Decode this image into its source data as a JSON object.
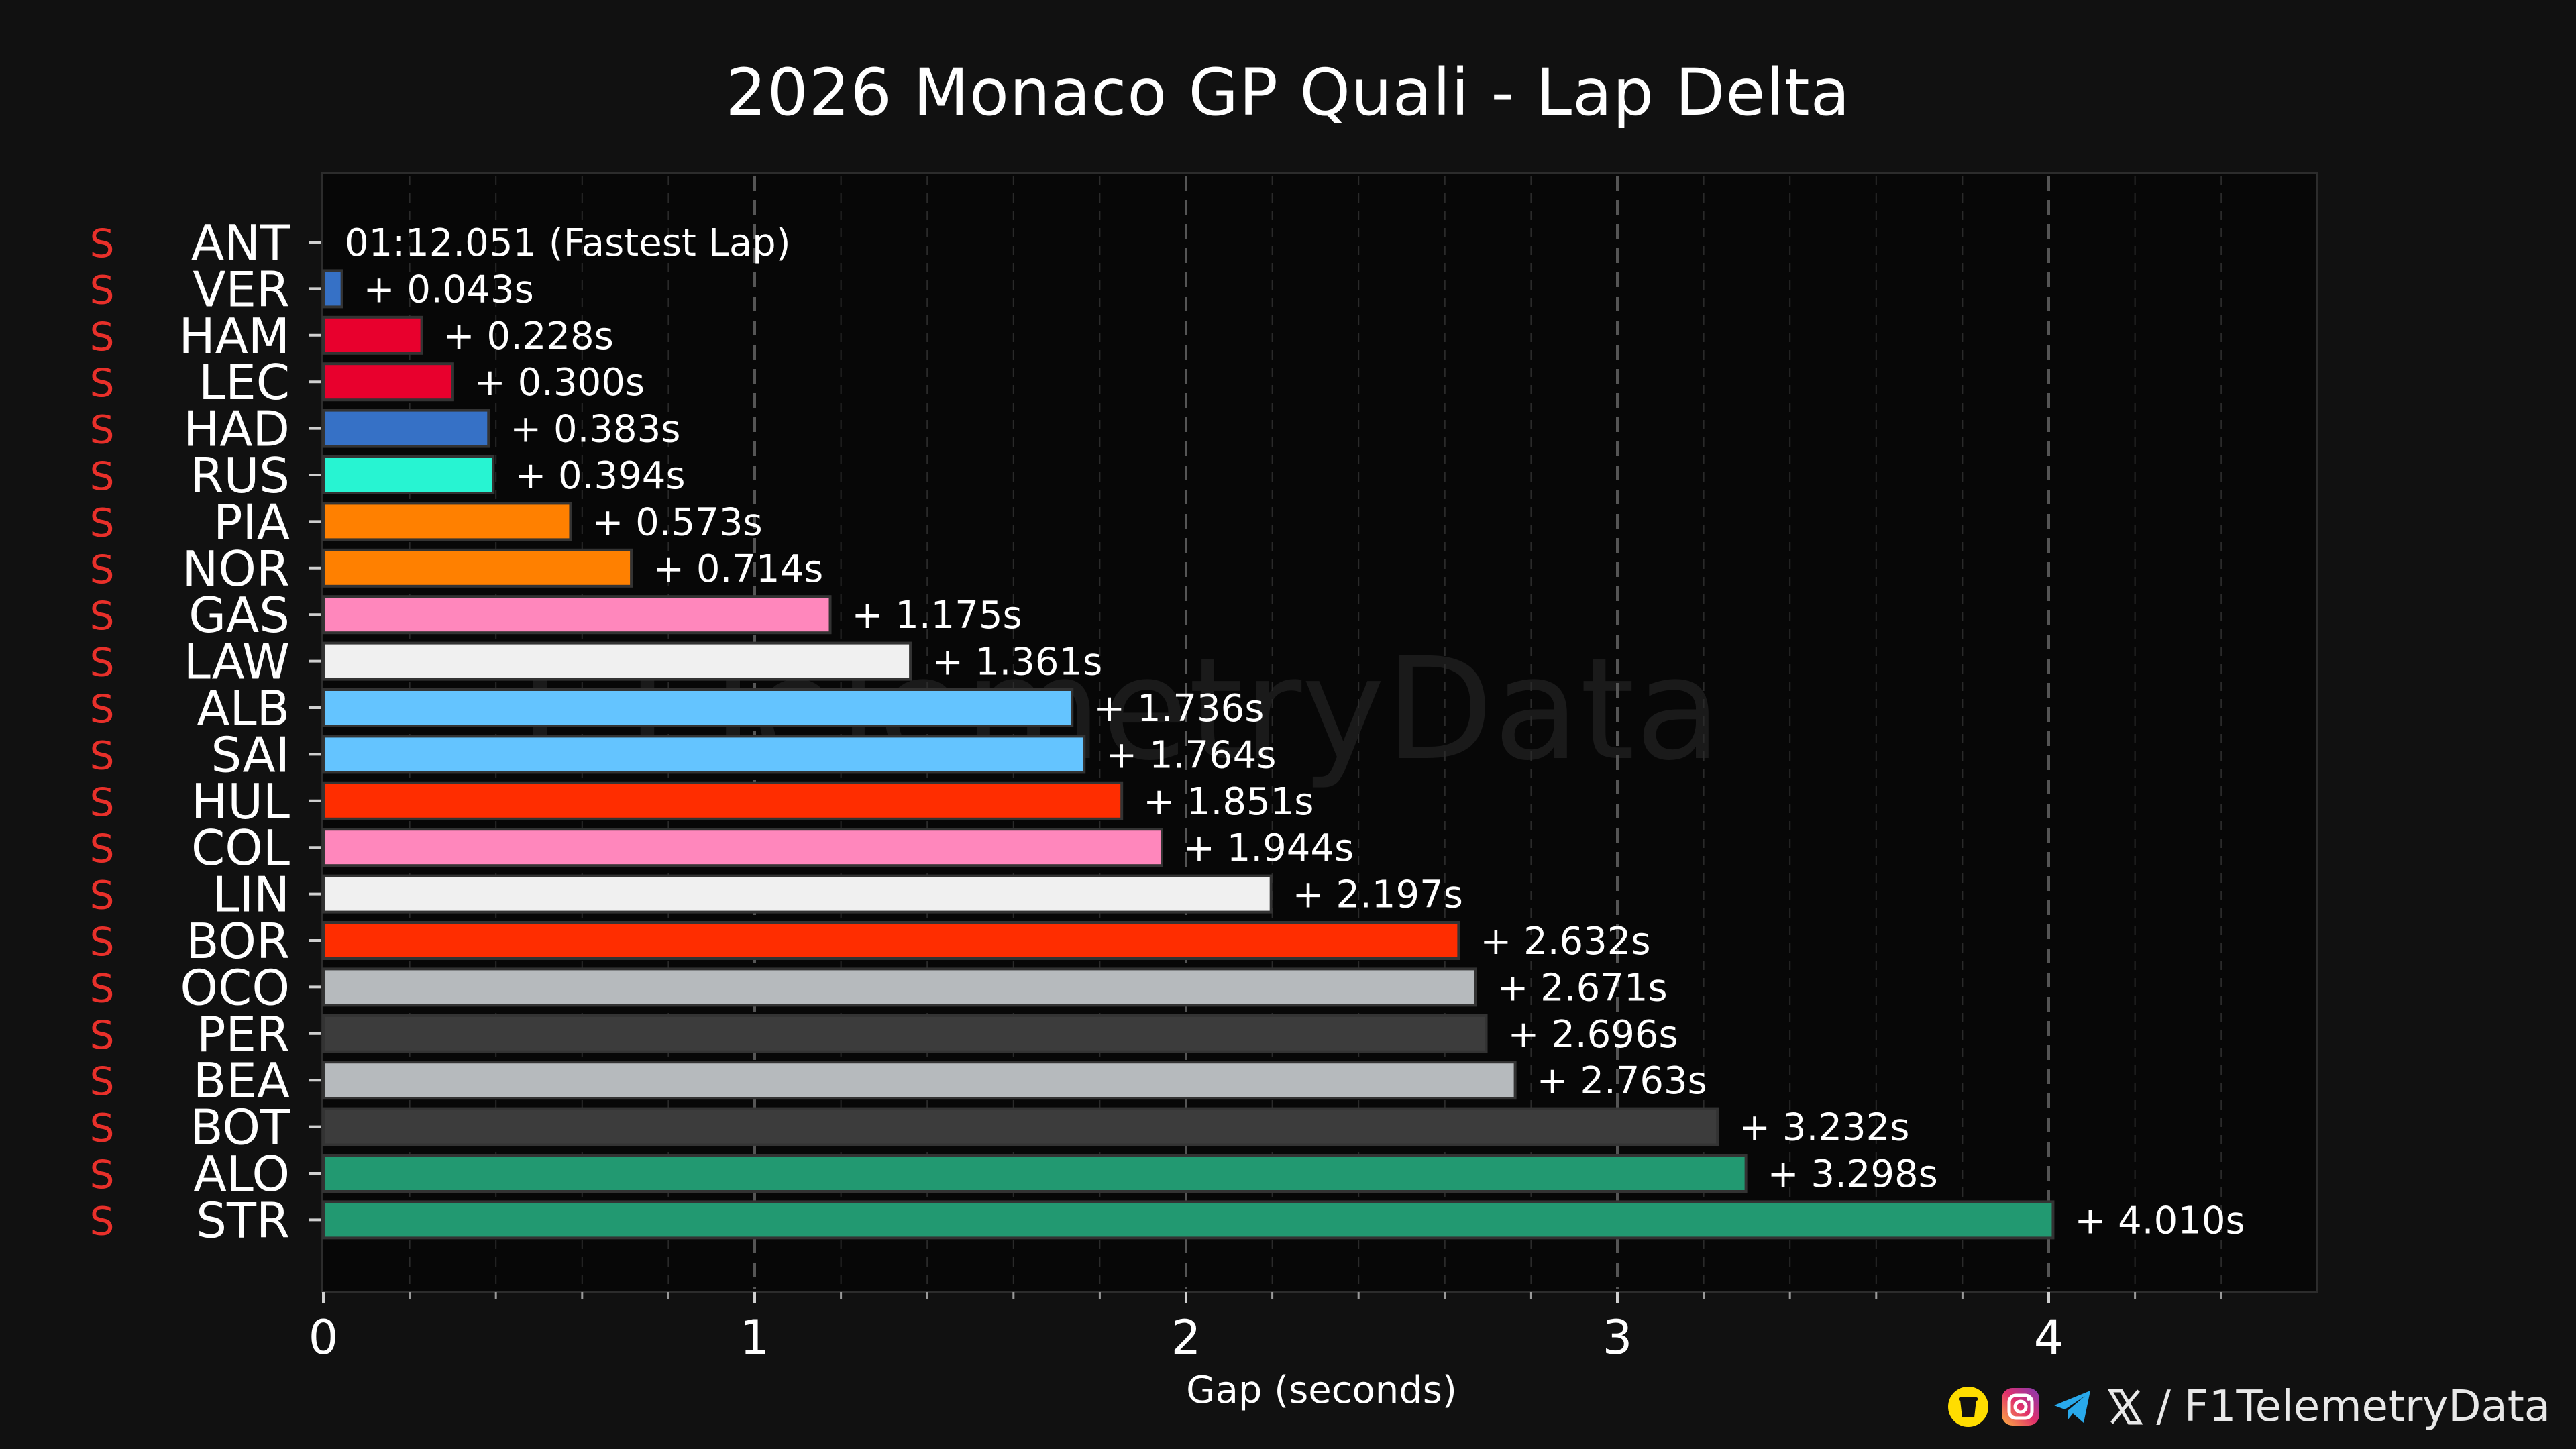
{
  "chart_data": {
    "type": "bar",
    "orientation": "horizontal",
    "title": "2026 Monaco GP Quali - Lap Delta",
    "xlabel": "Gap (seconds)",
    "xlim": [
      0,
      4.6
    ],
    "xticks": [
      "0",
      "1",
      "2",
      "3",
      "4"
    ],
    "grid": true,
    "tyre_marker": "S",
    "tyre_color": "#e8302a",
    "watermark": "F1TelemetryData",
    "fastest": {
      "driver": "ANT",
      "label": "01:12.051 (Fastest Lap)"
    },
    "bars": [
      {
        "driver": "ANT",
        "gap": 0.0,
        "label": "",
        "color": "#3671c6"
      },
      {
        "driver": "VER",
        "gap": 0.043,
        "label": "+ 0.043s",
        "color": "#3671c6"
      },
      {
        "driver": "HAM",
        "gap": 0.228,
        "label": "+ 0.228s",
        "color": "#e8002d"
      },
      {
        "driver": "LEC",
        "gap": 0.3,
        "label": "+ 0.300s",
        "color": "#e8002d"
      },
      {
        "driver": "HAD",
        "gap": 0.383,
        "label": "+ 0.383s",
        "color": "#3671c6"
      },
      {
        "driver": "RUS",
        "gap": 0.394,
        "label": "+ 0.394s",
        "color": "#27f4d2"
      },
      {
        "driver": "PIA",
        "gap": 0.573,
        "label": "+ 0.573s",
        "color": "#ff8000"
      },
      {
        "driver": "NOR",
        "gap": 0.714,
        "label": "+ 0.714s",
        "color": "#ff8000"
      },
      {
        "driver": "GAS",
        "gap": 1.175,
        "label": "+ 1.175s",
        "color": "#ff87bc"
      },
      {
        "driver": "LAW",
        "gap": 1.361,
        "label": "+ 1.361s",
        "color": "#f0f0f0"
      },
      {
        "driver": "ALB",
        "gap": 1.736,
        "label": "+ 1.736s",
        "color": "#64c4ff"
      },
      {
        "driver": "SAI",
        "gap": 1.764,
        "label": "+ 1.764s",
        "color": "#64c4ff"
      },
      {
        "driver": "HUL",
        "gap": 1.851,
        "label": "+ 1.851s",
        "color": "#ff2d00"
      },
      {
        "driver": "COL",
        "gap": 1.944,
        "label": "+ 1.944s",
        "color": "#ff87bc"
      },
      {
        "driver": "LIN",
        "gap": 2.197,
        "label": "+ 2.197s",
        "color": "#f0f0f0"
      },
      {
        "driver": "BOR",
        "gap": 2.632,
        "label": "+ 2.632s",
        "color": "#ff2d00"
      },
      {
        "driver": "OCO",
        "gap": 2.671,
        "label": "+ 2.671s",
        "color": "#b6babd"
      },
      {
        "driver": "PER",
        "gap": 2.696,
        "label": "+ 2.696s",
        "color": "#3c3c3c"
      },
      {
        "driver": "BEA",
        "gap": 2.763,
        "label": "+ 2.763s",
        "color": "#b6babd"
      },
      {
        "driver": "BOT",
        "gap": 3.232,
        "label": "+ 3.232s",
        "color": "#3c3c3c"
      },
      {
        "driver": "ALO",
        "gap": 3.298,
        "label": "+ 3.298s",
        "color": "#229971"
      },
      {
        "driver": "STR",
        "gap": 4.01,
        "label": "+ 4.010s",
        "color": "#229971"
      }
    ]
  },
  "footer": {
    "separator": "/",
    "handle": "F1TelemetryData",
    "icons": [
      "coffee-icon",
      "instagram-icon",
      "telegram-icon",
      "x-icon"
    ]
  }
}
